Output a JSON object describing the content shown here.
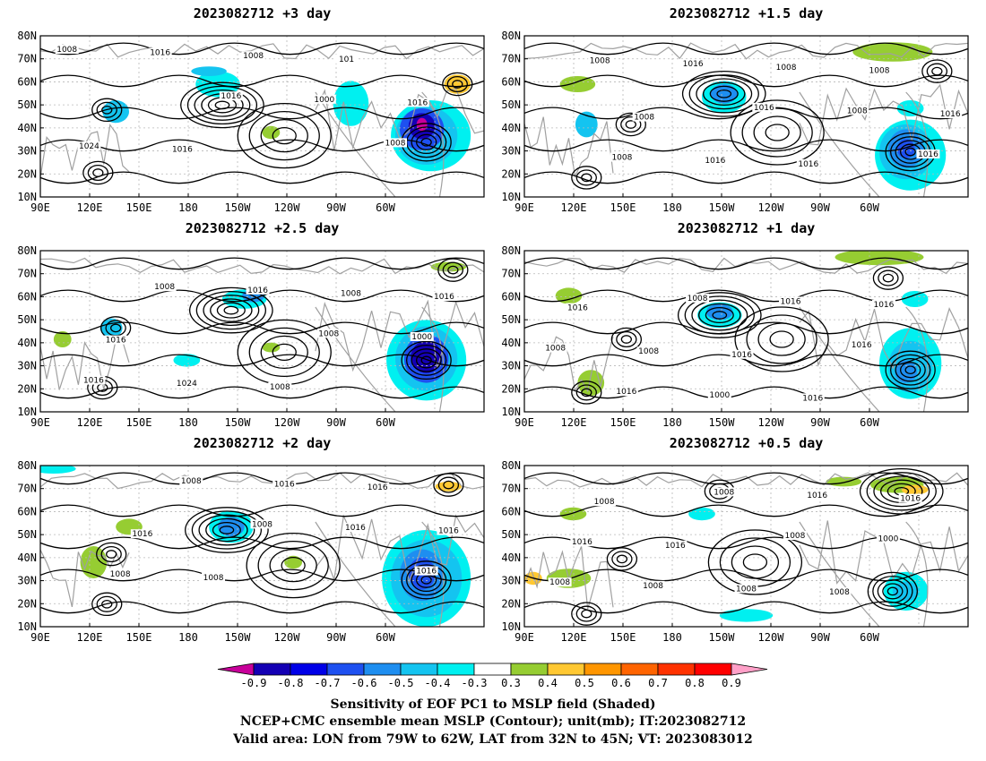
{
  "panels": [
    {
      "title": "2023082712  +3 day"
    },
    {
      "title": "2023082712  +1.5 day"
    },
    {
      "title": "2023082712  +2.5 day"
    },
    {
      "title": "2023082712  +1 day"
    },
    {
      "title": "2023082712  +2 day"
    },
    {
      "title": "2023082712  +0.5 day"
    }
  ],
  "axes": {
    "lon_labels": [
      "90E",
      "120E",
      "150E",
      "180",
      "150W",
      "120W",
      "90W",
      "60W"
    ],
    "lat_labels": [
      "80N",
      "70N",
      "60N",
      "50N",
      "40N",
      "30N",
      "20N",
      "10N"
    ]
  },
  "contour_labels": [
    [
      "1008",
      "1016",
      "1008",
      "1016",
      "1000",
      "1024",
      "1008",
      "1016",
      "1016",
      "101"
    ],
    [
      "1008",
      "1016",
      "1016",
      "1016",
      "1008",
      "1008",
      "1008",
      "1016",
      "1016",
      "1008",
      "1008",
      "1016"
    ],
    [
      "1008",
      "1008",
      "1016",
      "1016",
      "1000",
      "1024",
      "1008",
      "1016",
      "1008",
      "1016"
    ],
    [
      "1008",
      "1016",
      "1016",
      "1016",
      "1008",
      "1000",
      "1016",
      "1008",
      "1016",
      "1016",
      "1016"
    ],
    [
      "1008",
      "1016",
      "1008",
      "1016",
      "1008",
      "1016",
      "1016",
      "1008",
      "1016",
      "1016"
    ],
    [
      "1008",
      "1008",
      "1008",
      "1000",
      "1008",
      "1016",
      "1016",
      "1008",
      "1016",
      "1016",
      "1008",
      "1008"
    ]
  ],
  "colorbar": {
    "levels": [
      "-0.9",
      "-0.8",
      "-0.7",
      "-0.6",
      "-0.5",
      "-0.4",
      "-0.3",
      "0.3",
      "0.4",
      "0.5",
      "0.6",
      "0.7",
      "0.8",
      "0.9"
    ],
    "colors": [
      "#c8009a",
      "#1400b4",
      "#0000e8",
      "#1e50f0",
      "#1e8ef0",
      "#14c4f0",
      "#00f0f0",
      "#ffffff",
      "#96cd32",
      "#ffc832",
      "#ff9600",
      "#ff6400",
      "#ff3200",
      "#ff0000",
      "#ffa0c8"
    ]
  },
  "footer": {
    "line1": "Sensitivity of EOF PC1 to MSLP field (Shaded)",
    "line2": "NCEP+CMC ensemble mean MSLP (Contour); unit(mb); IT:2023082712",
    "line3": "Valid area: LON from 79W to 62W, LAT from 32N to 45N; VT: 2023083012"
  }
}
